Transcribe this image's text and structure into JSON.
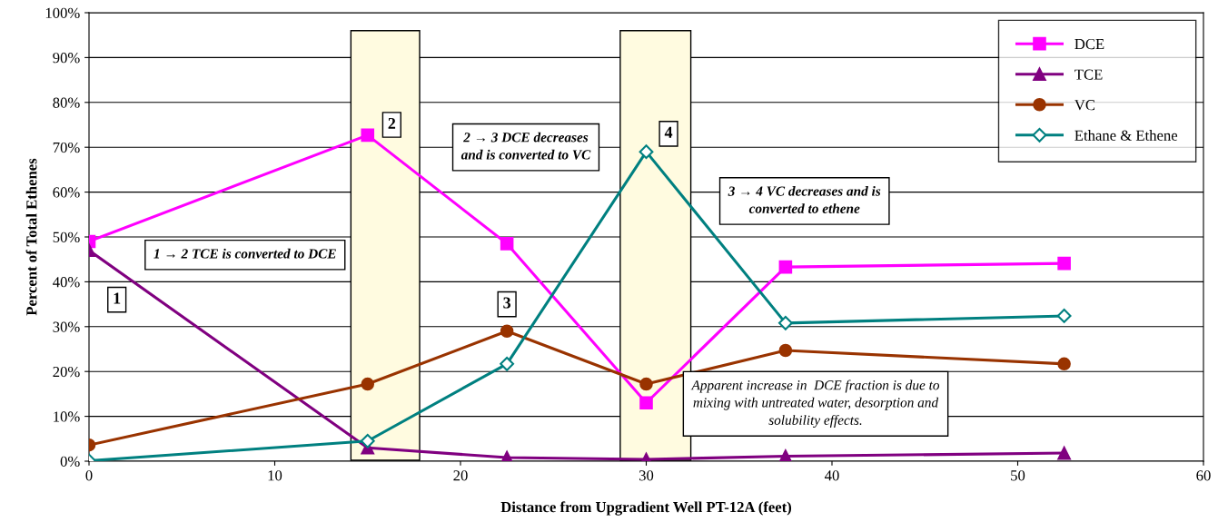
{
  "chart_data": {
    "type": "line",
    "xlabel": "Distance from Upgradient Well PT-12A (feet)",
    "ylabel": "Percent of Total Ethenes",
    "x": [
      0,
      15,
      22.5,
      30,
      37.5,
      52.5
    ],
    "series": [
      {
        "name": "DCE",
        "color": "#ff00ff",
        "marker": "square",
        "values": [
          49,
          72.7,
          48.5,
          13,
          43.3,
          44.1
        ]
      },
      {
        "name": "TCE",
        "color": "#800080",
        "marker": "triangle",
        "values": [
          47,
          3,
          0.8,
          0.4,
          1.1,
          1.8
        ]
      },
      {
        "name": "VC",
        "color": "#993300",
        "marker": "circle",
        "values": [
          3.6,
          17.2,
          29,
          17.2,
          24.7,
          21.7
        ]
      },
      {
        "name": "Ethane & Ethene",
        "color": "#008080",
        "marker": "diamond",
        "values": [
          0.1,
          4.5,
          21.7,
          69,
          30.8,
          32.4
        ]
      }
    ],
    "xlim": [
      0,
      60
    ],
    "xticks": [
      0,
      10,
      20,
      30,
      40,
      50,
      60
    ],
    "ylim": [
      0,
      100
    ],
    "yticks": [
      {
        "value": 0,
        "label": "0%"
      },
      {
        "value": 10,
        "label": "10%"
      },
      {
        "value": 20,
        "label": "20%"
      },
      {
        "value": 30,
        "label": "30%"
      },
      {
        "value": 40,
        "label": "40%"
      },
      {
        "value": 50,
        "label": "50%"
      },
      {
        "value": 60,
        "label": "60%"
      },
      {
        "value": 70,
        "label": "70%"
      },
      {
        "value": 80,
        "label": "80%"
      },
      {
        "value": 90,
        "label": "90%"
      },
      {
        "value": 100,
        "label": "100%"
      }
    ],
    "grid": "y",
    "legend": "top right",
    "bands": [
      {
        "axis": "x",
        "from": 14.1,
        "to": 17.8,
        "color": "#fffbe0"
      },
      {
        "axis": "x",
        "from": 28.6,
        "to": 32.4,
        "color": "#fffbe0"
      }
    ],
    "annotations": [
      {
        "text": "1",
        "x": 1.5,
        "y": 36
      },
      {
        "text": "2",
        "x": 16.3,
        "y": 75
      },
      {
        "text": "3",
        "x": 22.5,
        "y": 35
      },
      {
        "text": "4",
        "x": 31.2,
        "y": 73
      },
      "1 → 2 TCE is converted to DCE",
      "2 → 3 DCE decreases\nand is converted to VC",
      "3 → 4 VC decreases and is\nconverted to ethene",
      "Apparent increase in  DCE fraction is due to\nmixing with untreated water, desorption and\nsolubility effects."
    ]
  }
}
